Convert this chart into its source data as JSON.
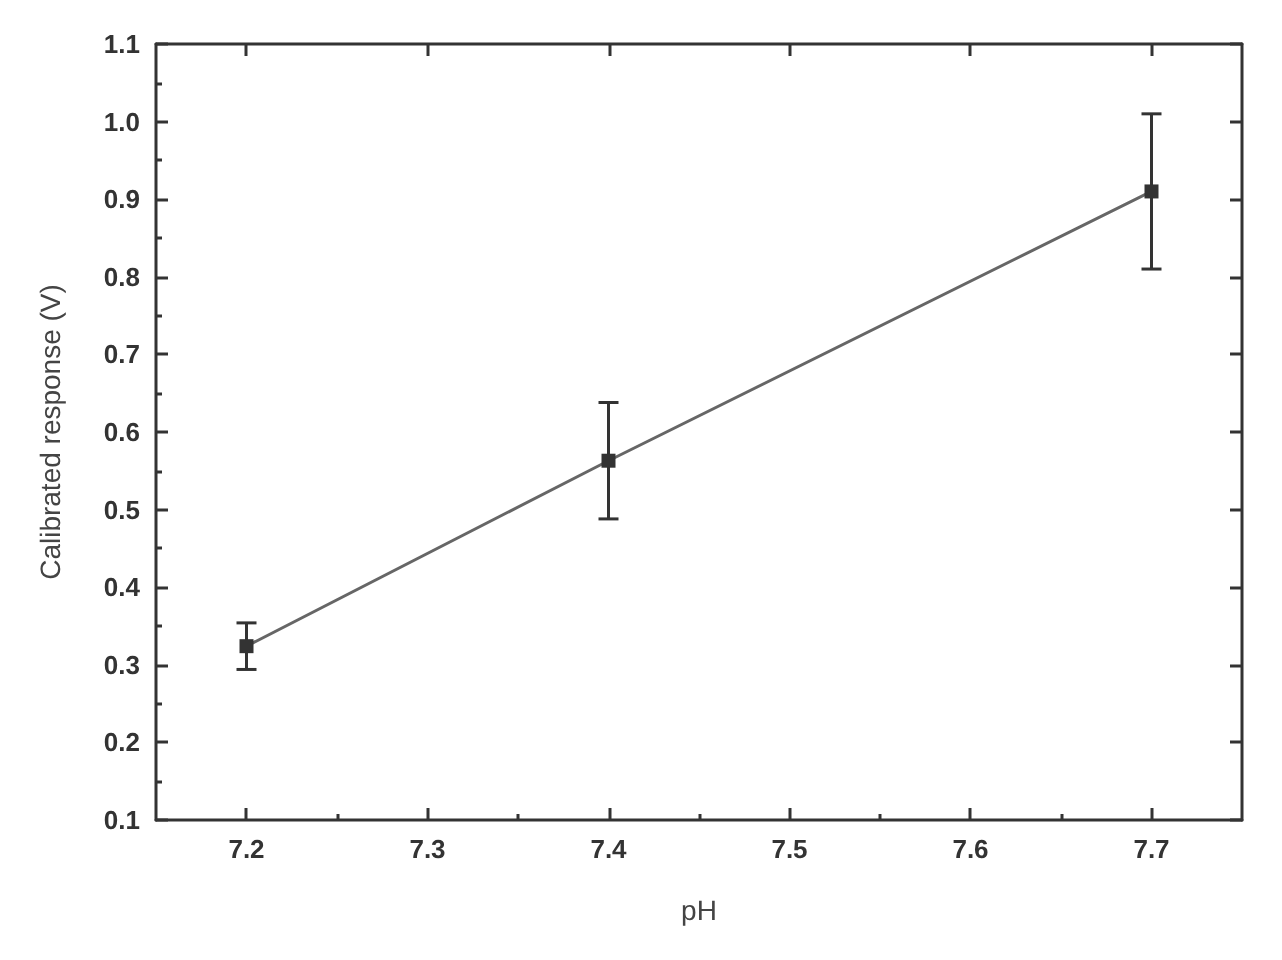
{
  "chart_data": {
    "type": "line",
    "xlabel": "pH",
    "ylabel": "Calibrated response (V)",
    "x": [
      7.2,
      7.4,
      7.7
    ],
    "series": [
      {
        "color": "#333333",
        "values": [
          0.324,
          0.563,
          0.91
        ],
        "errors": [
          0.03,
          0.075,
          0.1
        ]
      }
    ],
    "marker": "square",
    "line_style": "solid",
    "xlim": [
      7.15,
      7.75
    ],
    "xticks": [
      7.2,
      7.3,
      7.4,
      7.5,
      7.6,
      7.7
    ],
    "ylim": [
      0.1,
      1.1
    ],
    "yticks": [
      0.1,
      0.2,
      0.3,
      0.4,
      0.5,
      0.6,
      0.7,
      0.8,
      0.9,
      {
        "value": 1.0,
        "label": "1.0"
      },
      1.1
    ],
    "grid": false
  }
}
